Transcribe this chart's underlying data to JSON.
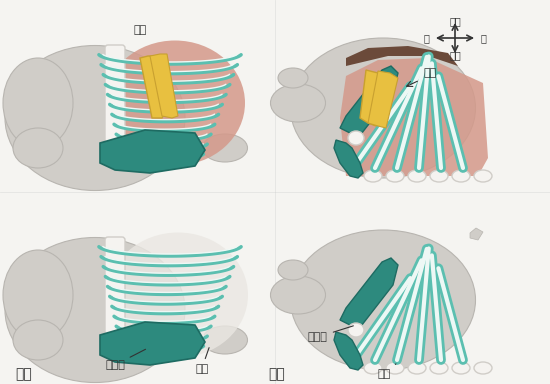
{
  "bg_color": "#f0eeeb",
  "body_color": "#d0cdc8",
  "body_edge": "#b8b5b0",
  "teal_color": "#5bbfb0",
  "teal_dark": "#2d8a7e",
  "salmon_color": "#d4998a",
  "yellow_color": "#e8c040",
  "white_bone": "#f5f3f0",
  "white_bone_edge": "#d0cdc8",
  "text_color": "#333333",
  "title_ヒト": "ヒト",
  "title_カメ": "カメ",
  "label_肩甲骨_1": "肩甲骨",
  "label_肋骨_1": "肋骨",
  "label_肩甲骨_2": "肩甲骨",
  "label_肋骨_2": "肋骨",
  "label_筋板_1": "筋板",
  "label_筋板_2": "筋板",
  "label_背側": "背側",
  "label_腹側": "腹側",
  "label_前": "前",
  "label_後": "後"
}
